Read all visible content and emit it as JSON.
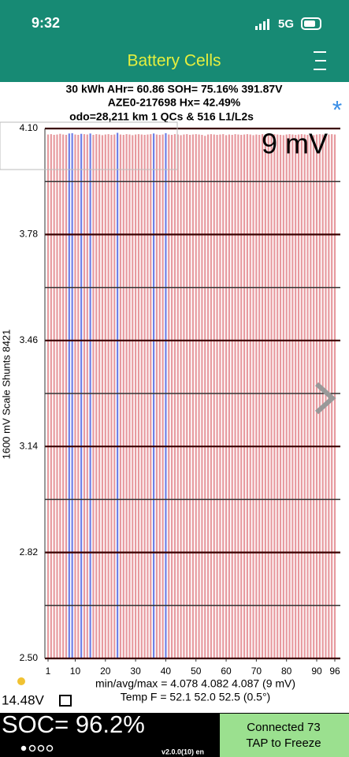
{
  "status_bar": {
    "time": "9:32",
    "network": "5G"
  },
  "header": {
    "title": "Battery Cells"
  },
  "info": [
    "30 kWh  AHr= 60.86  SOH= 75.16%   391.87V",
    "AZE0-217698   Hx= 42.49%",
    "odo=28,211 km 1 QCs & 516 L1/L2s"
  ],
  "star": "*",
  "chart_data": {
    "type": "bar",
    "ylabel": "1600 mV Scale   Shunts 8421",
    "annotation": "9 mV",
    "x": [
      1,
      2,
      3,
      4,
      5,
      6,
      7,
      8,
      9,
      10,
      11,
      12,
      13,
      14,
      15,
      16,
      17,
      18,
      19,
      20,
      21,
      22,
      23,
      24,
      25,
      26,
      27,
      28,
      29,
      30,
      31,
      32,
      33,
      34,
      35,
      36,
      37,
      38,
      39,
      40,
      41,
      42,
      43,
      44,
      45,
      46,
      47,
      48,
      49,
      50,
      51,
      52,
      53,
      54,
      55,
      56,
      57,
      58,
      59,
      60,
      61,
      62,
      63,
      64,
      65,
      66,
      67,
      68,
      69,
      70,
      71,
      72,
      73,
      74,
      75,
      76,
      77,
      78,
      79,
      80,
      81,
      82,
      83,
      84,
      85,
      86,
      87,
      88,
      89,
      90,
      91,
      92,
      93,
      94,
      95,
      96
    ],
    "values": [
      4.082,
      4.083,
      4.081,
      4.082,
      4.084,
      4.082,
      4.081,
      4.085,
      4.086,
      4.082,
      4.081,
      4.084,
      4.083,
      4.082,
      4.085,
      4.081,
      4.083,
      4.082,
      4.08,
      4.082,
      4.083,
      4.081,
      4.082,
      4.087,
      4.082,
      4.081,
      4.083,
      4.082,
      4.08,
      4.082,
      4.083,
      4.082,
      4.081,
      4.082,
      4.083,
      4.085,
      4.082,
      4.081,
      4.082,
      4.086,
      4.082,
      4.081,
      4.083,
      4.082,
      4.08,
      4.082,
      4.083,
      4.081,
      4.082,
      4.083,
      4.082,
      4.081,
      4.078,
      4.082,
      4.083,
      4.082,
      4.081,
      4.082,
      4.083,
      4.08,
      4.082,
      4.081,
      4.083,
      4.082,
      4.081,
      4.082,
      4.083,
      4.082,
      4.08,
      4.082,
      4.081,
      4.083,
      4.082,
      4.081,
      4.082,
      4.083,
      4.082,
      4.081,
      4.08,
      4.082,
      4.083,
      4.082,
      4.081,
      4.082,
      4.083,
      4.082,
      4.081,
      4.082,
      4.08,
      4.082,
      4.083,
      4.082,
      4.081,
      4.082,
      4.083,
      4.082
    ],
    "color": "#e79a9f",
    "highlight_color": "#6f7fe6",
    "highlighted": [
      8,
      9,
      12,
      15,
      24,
      36,
      40
    ],
    "xlim": [
      0,
      97
    ],
    "xticks": [
      1,
      10,
      20,
      30,
      40,
      50,
      60,
      70,
      80,
      90,
      96
    ],
    "ylim": [
      2.5,
      4.1
    ],
    "yticks": [
      {
        "value": 2.5,
        "label": "2.50"
      },
      2.82,
      3.14,
      3.46,
      3.78,
      {
        "value": 4.1,
        "label": "4.10"
      }
    ],
    "minor_yticks": [
      2.66,
      2.98,
      3.3,
      3.62,
      3.94
    ],
    "grid": true
  },
  "stats": [
    "min/avg/max = 4.078 4.082 4.087  (9 mV)",
    "Temp F = 52.1  52.0  52.5  (0.5°)"
  ],
  "voltage": "14.48V",
  "soc": "SOC= 96.2%",
  "version": "v2.0.0(10) en",
  "connection": [
    "Connected 73",
    "TAP to Freeze"
  ]
}
